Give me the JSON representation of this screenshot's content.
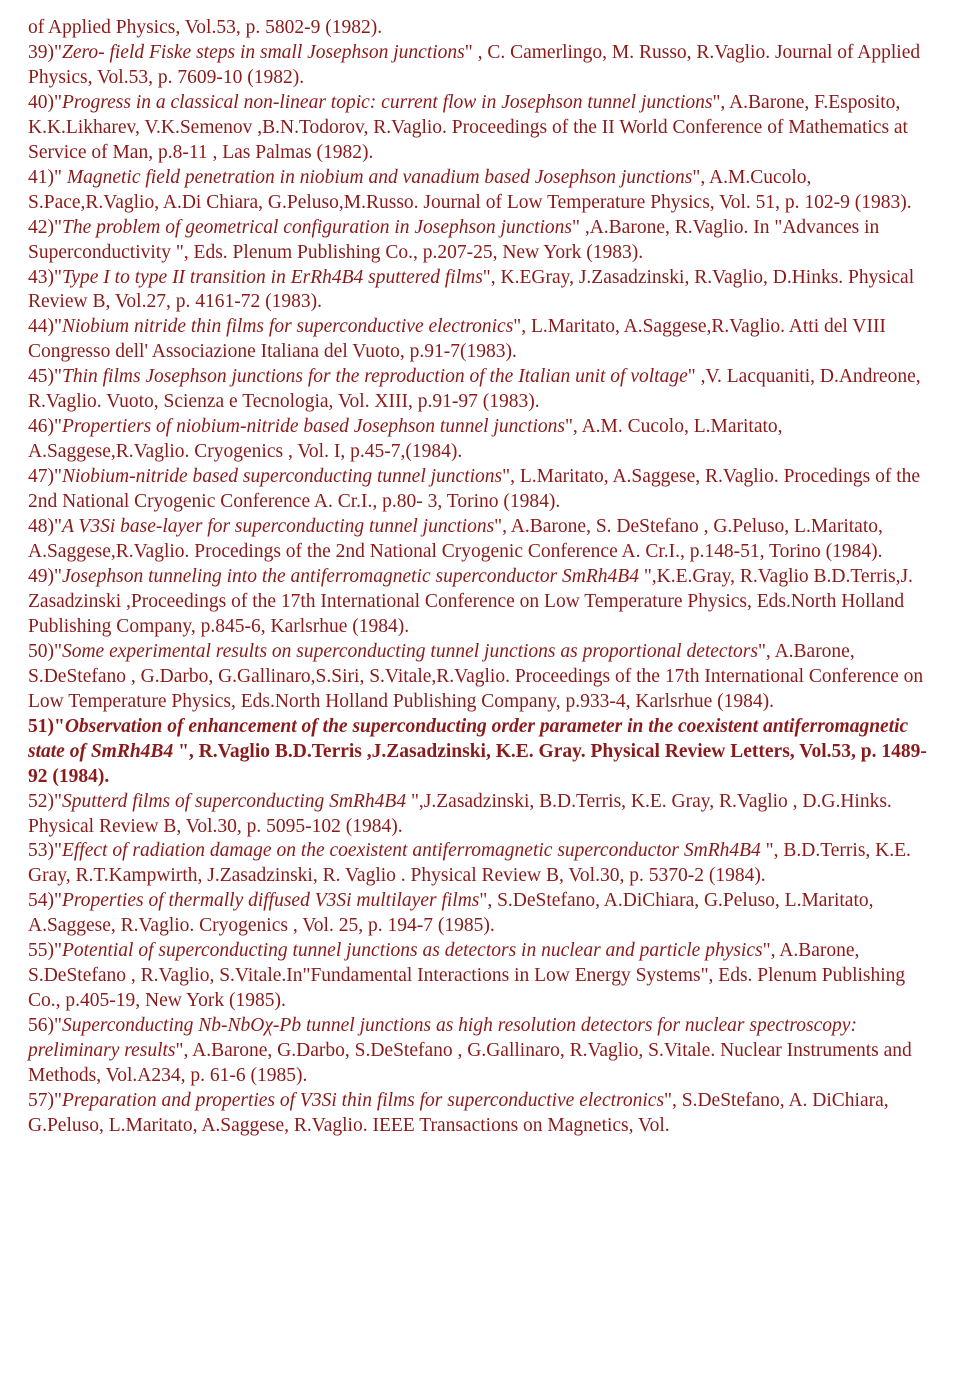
{
  "lines": [
    {
      "segs": [
        {
          "t": "of Applied Physics, Vol.53, p. 5802-9 (1982)."
        }
      ]
    },
    {
      "segs": [
        {
          "t": "39)\""
        },
        {
          "t": "Zero- field Fiske steps in small Josephson junctions",
          "i": true
        },
        {
          "t": "\" , C. Camerlingo, M. Russo, R.Vaglio. Journal of Applied Physics, Vol.53, p. 7609-10 (1982)."
        }
      ]
    },
    {
      "segs": [
        {
          "t": "40)\""
        },
        {
          "t": "Progress in a classical non-linear topic: current flow in Josephson tunnel junctions",
          "i": true
        },
        {
          "t": "\", A.Barone, F.Esposito, K.K.Likharev, V.K.Semenov ,B.N.Todorov, R.Vaglio. Proceedings of the II World Conference of Mathematics at Service of Man, p.8-11 , Las Palmas (1982)."
        }
      ]
    },
    {
      "segs": [
        {
          "t": "41)\""
        },
        {
          "t": " Magnetic field penetration  in  niobium  and  vanadium  based  Josephson junctions",
          "i": true
        },
        {
          "t": "\", A.M.Cucolo, S.Pace,R.Vaglio, A.Di Chiara,  G.Peluso,M.Russo. Journal of Low Temperature Physics, Vol. 51, p. 102-9 (1983)."
        }
      ]
    },
    {
      "segs": [
        {
          "t": "42)\""
        },
        {
          "t": "The problem of geometrical configuration in Josephson junctions",
          "i": true
        },
        {
          "t": "\" ,A.Barone, R.Vaglio. In \"Advances in Superconductivity \", Eds. Plenum Publishing Co., p.207-25, New York (1983)."
        }
      ]
    },
    {
      "segs": [
        {
          "t": "43)\""
        },
        {
          "t": "Type I to type II transition in ErRh4B4  sputtered films",
          "i": true
        },
        {
          "t": "\", K.EGray, J.Zasadzinski, R.Vaglio, D.Hinks. Physical Review B, Vol.27, p. 4161-72 (1983)."
        }
      ]
    },
    {
      "segs": [
        {
          "t": "44)\""
        },
        {
          "t": "Niobium nitride thin films for superconductive electronics",
          "i": true
        },
        {
          "t": "\", L.Maritato, A.Saggese,R.Vaglio. Atti del VIII Congresso dell' Associazione Italiana  del Vuoto, p.91-7(1983)."
        }
      ]
    },
    {
      "segs": [
        {
          "t": "45)\""
        },
        {
          "t": "Thin films Josephson junctions for the reproduction of the Italian unit of voltage",
          "i": true
        },
        {
          "t": "\" ,V. Lacquaniti, D.Andreone, R.Vaglio. Vuoto, Scienza e Tecnologia, Vol. XIII, p.91-97 (1983)."
        }
      ]
    },
    {
      "segs": [
        {
          "t": "46)\""
        },
        {
          "t": "Propertiers of niobium-nitride based Josephson tunnel  junctions",
          "i": true
        },
        {
          "t": "\", A.M. Cucolo, L.Maritato, A.Saggese,R.Vaglio. Cryogenics , Vol. I, p.45-7,(1984)."
        }
      ]
    },
    {
      "segs": [
        {
          "t": "47)\""
        },
        {
          "t": "Niobium-nitride based superconducting tunnel junctions",
          "i": true
        },
        {
          "t": "\", L.Maritato, A.Saggese, R.Vaglio. Procedings of the 2nd National Cryogenic Conference A. Cr.I., p.80- 3, Torino (1984)."
        }
      ]
    },
    {
      "segs": [
        {
          "t": "48)\""
        },
        {
          "t": "A V3Si base-layer for superconducting tunnel junctions",
          "i": true
        },
        {
          "t": "\", A.Barone,  S. DeStefano , G.Peluso, L.Maritato, A.Saggese,R.Vaglio. Procedings of the 2nd National Cryogenic Conference A. Cr.I., p.148-51, Torino (1984)."
        }
      ]
    },
    {
      "segs": [
        {
          "t": "49)\""
        },
        {
          "t": "Josephson tunneling into the antiferromagnetic superconductor SmRh4B4 ",
          "i": true
        },
        {
          "t": "\",K.E.Gray, R.Vaglio B.D.Terris,J. Zasadzinski ,Proceedings of the 17th International  Conference  on  Low Temperature Physics,  Eds.North  Holland  Publishing Company, p.845-6, Karlsrhue (1984)."
        }
      ]
    },
    {
      "segs": [
        {
          "t": "50)\""
        },
        {
          "t": "Some experimental results on superconducting tunnel junctions as proportional detectors",
          "i": true
        },
        {
          "t": "\", A.Barone,  S.DeStefano , G.Darbo,  G.Gallinaro,S.Siri, S.Vitale,R.Vaglio. Proceedings of the 17th International Conference on Low Temperature  Physics,  Eds.North  Holland  Publishing Company,  p.933-4, Karlsrhue (1984)."
        }
      ]
    },
    {
      "segs": [
        {
          "t": "51)\"",
          "b": true
        },
        {
          "t": "Observation of enhancement of the superconducting order parameter  in the coexistent antiferromagnetic state of SmRh4B4 ",
          "b": true,
          "i": true
        },
        {
          "t": "\",  R.Vaglio  B.D.Terris ,J.Zasadzinski, K.E. Gray. Physical Review Letters, Vol.53, p. 1489-92 (1984).",
          "b": true
        }
      ]
    },
    {
      "segs": [
        {
          "t": "52)\""
        },
        {
          "t": "Sputterd  films  of  superconducting SmRh4B4 ",
          "i": true
        },
        {
          "t": "\",J.Zasadzinski, B.D.Terris, K.E.  Gray, R.Vaglio  , D.G.Hinks.  Physical  Review  B,  Vol.30,  p.  5095-102 (1984)."
        }
      ]
    },
    {
      "segs": [
        {
          "t": "53)\""
        },
        {
          "t": "Effect of radiation damage on the coexistent antiferromagnetic superconductor  SmRh4B4 ",
          "i": true
        },
        {
          "t": "\", B.D.Terris,  K.E.  Gray, R.T.Kampwirth,  J.Zasadzinski,  R. Vaglio . Physical Review B, Vol.30, p. 5370-2 (1984)."
        }
      ]
    },
    {
      "segs": [
        {
          "t": "54)\""
        },
        {
          "t": "Properties  of  thermally  diffused  V3Si  multilayer  films",
          "i": true
        },
        {
          "t": "\", S.DeStefano, A.DiChiara, G.Peluso, L.Maritato, A.Saggese, R.Vaglio. Cryogenics , Vol. 25, p. 194-7 (1985)."
        }
      ]
    },
    {
      "segs": [
        {
          "t": "55)\""
        },
        {
          "t": "Potential of superconducting tunnel junctions as detectors in nuclear and particle physics",
          "i": true
        },
        {
          "t": "\", A.Barone, S.DeStefano , R.Vaglio, S.Vitale.In\"Fundamental Interactions in Low Energy Systems\", Eds. Plenum Publishing Co., p.405-19, New York (1985)."
        }
      ]
    },
    {
      "segs": [
        {
          "t": "56)\""
        },
        {
          "t": "Superconducting Nb-NbOχ-Pb tunnel junctions as high resolution detectors for  nuclear spectroscopy: preliminary results",
          "i": true
        },
        {
          "t": "\", A.Barone,  G.Darbo, S.DeStefano , G.Gallinaro, R.Vaglio, S.Vitale. Nuclear Instruments and Methods, Vol.A234, p. 61-6 (1985)."
        }
      ]
    },
    {
      "segs": [
        {
          "t": "57)\""
        },
        {
          "t": "Preparation and properties of V3Si thin films for superconductive electronics",
          "i": true
        },
        {
          "t": "\", S.DeStefano, A. DiChiara, G.Peluso, L.Maritato,  A.Saggese,  R.Vaglio. IEEE Transactions on Magnetics, Vol."
        }
      ]
    }
  ]
}
